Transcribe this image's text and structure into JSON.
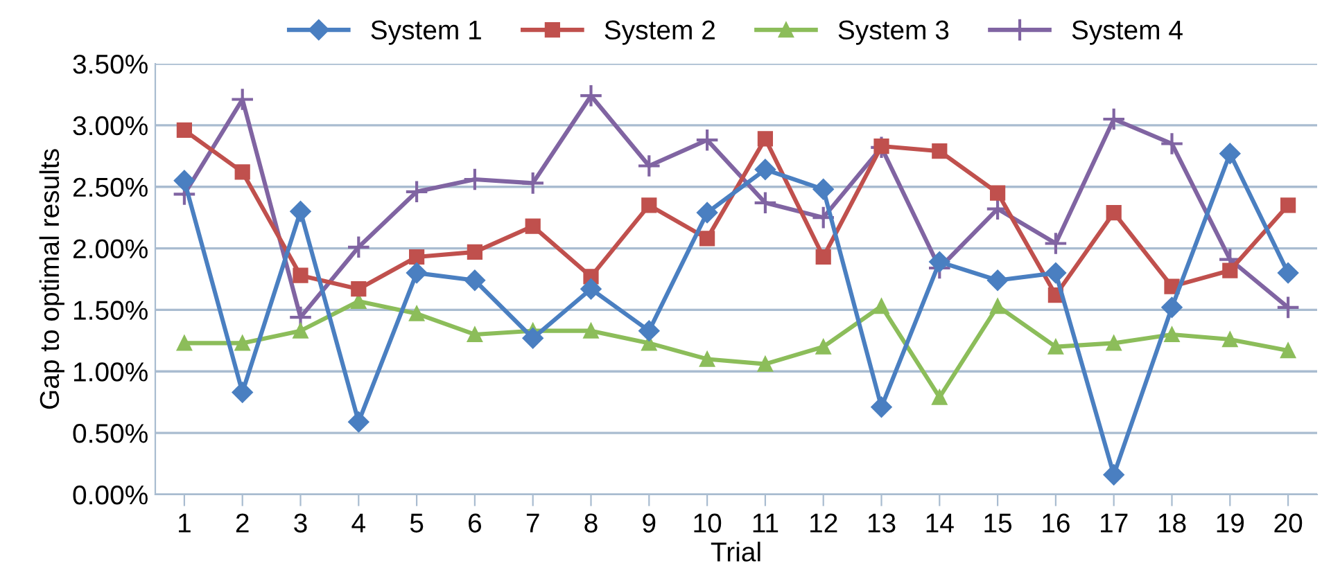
{
  "chart_data": {
    "type": "line",
    "xlabel": "Trial",
    "ylabel": "Gap to optimal results",
    "categories": [
      "1",
      "2",
      "3",
      "4",
      "5",
      "6",
      "7",
      "8",
      "9",
      "10",
      "11",
      "12",
      "13",
      "14",
      "15",
      "16",
      "17",
      "18",
      "19",
      "20"
    ],
    "series": [
      {
        "name": "System 1",
        "color": "#4a7fc1",
        "marker": "diamond",
        "values": [
          2.55,
          0.83,
          2.3,
          0.59,
          1.8,
          1.74,
          1.27,
          1.67,
          1.33,
          2.29,
          2.64,
          2.48,
          0.71,
          1.89,
          1.74,
          1.8,
          0.16,
          1.52,
          2.77,
          1.8
        ]
      },
      {
        "name": "System 2",
        "color": "#c0504d",
        "marker": "square",
        "values": [
          2.96,
          2.62,
          1.78,
          1.67,
          1.93,
          1.97,
          2.18,
          1.77,
          2.35,
          2.08,
          2.89,
          1.93,
          2.83,
          2.79,
          2.45,
          1.62,
          2.29,
          1.69,
          1.82,
          2.35
        ]
      },
      {
        "name": "System 3",
        "color": "#8cbd5a",
        "marker": "triangle",
        "values": [
          1.23,
          1.23,
          1.33,
          1.57,
          1.47,
          1.3,
          1.33,
          1.33,
          1.23,
          1.1,
          1.06,
          1.2,
          1.53,
          0.79,
          1.53,
          1.2,
          1.23,
          1.3,
          1.26,
          1.17
        ]
      },
      {
        "name": "System 4",
        "color": "#8064a2",
        "marker": "cross",
        "values": [
          2.44,
          3.21,
          1.44,
          2.01,
          2.46,
          2.56,
          2.53,
          3.24,
          2.67,
          2.88,
          2.37,
          2.25,
          2.82,
          1.84,
          2.32,
          2.04,
          3.05,
          2.85,
          1.91,
          1.52
        ]
      }
    ],
    "ylim": [
      0,
      3.5
    ],
    "yticks": [
      {
        "value": 0,
        "label": "0.00%"
      },
      {
        "value": 0.5,
        "label": "0.50%"
      },
      {
        "value": 1,
        "label": "1.00%"
      },
      {
        "value": 1.5,
        "label": "1.50%"
      },
      {
        "value": 2,
        "label": "2.00%"
      },
      {
        "value": 2.5,
        "label": "2.50%"
      },
      {
        "value": 3,
        "label": "3.00%"
      },
      {
        "value": 3.5,
        "label": "3.50%"
      }
    ],
    "grid": "y",
    "legend": "top",
    "line_style": "solid"
  }
}
